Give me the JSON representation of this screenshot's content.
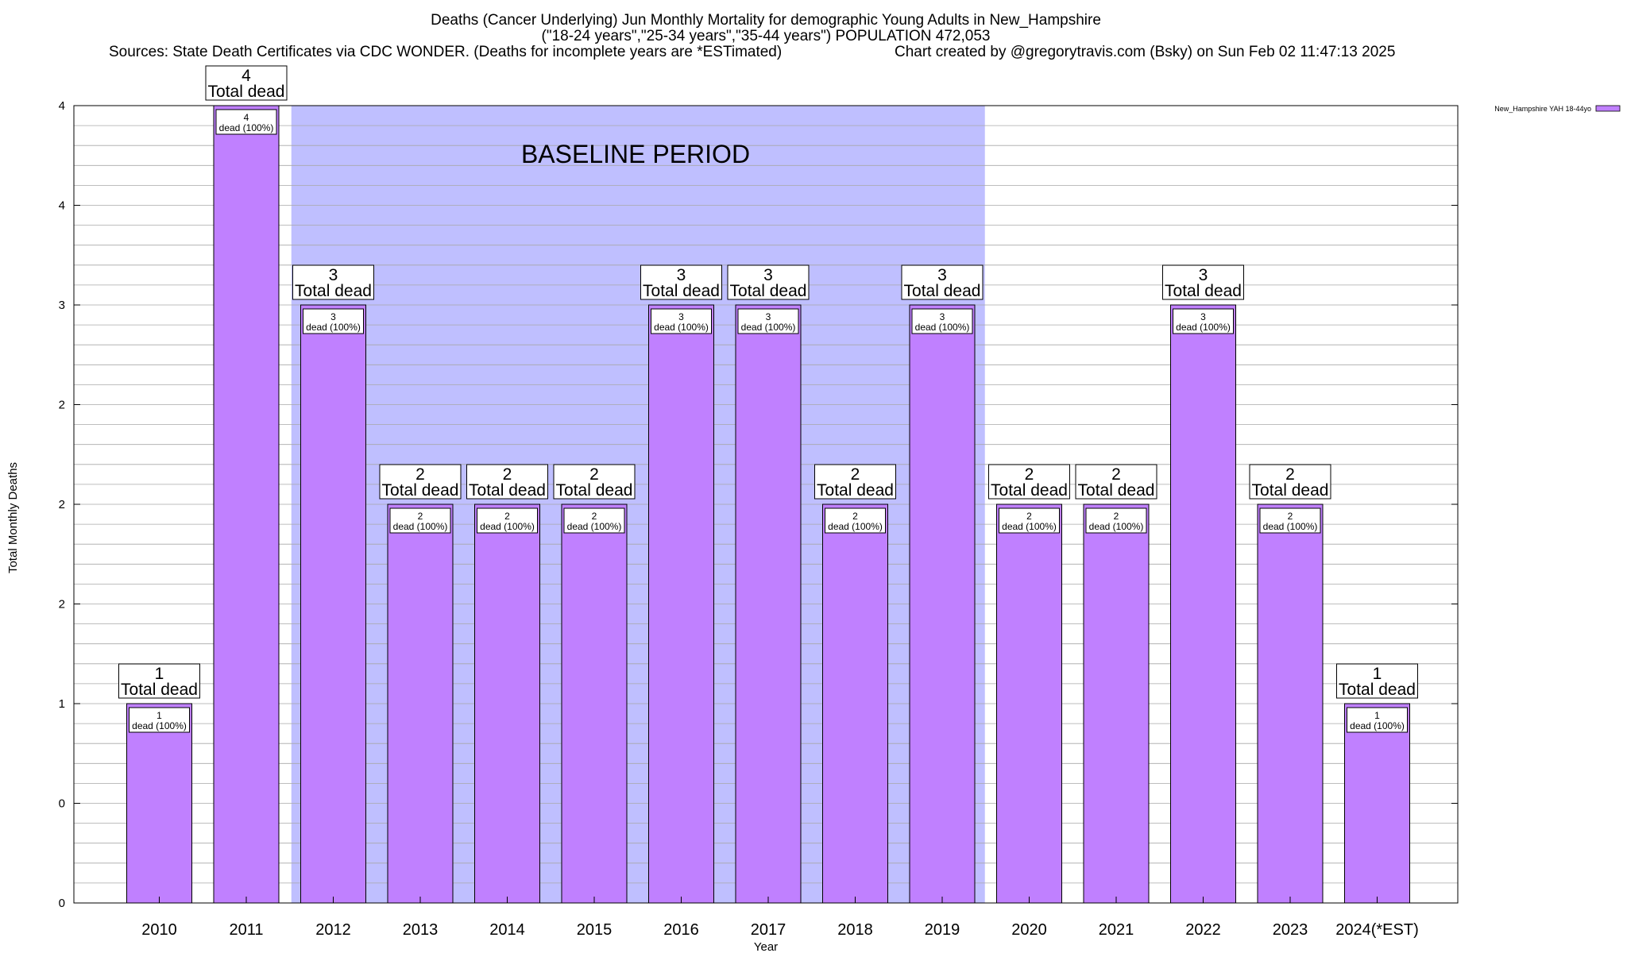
{
  "chart_data": {
    "type": "bar",
    "title_lines": [
      "Deaths (Cancer Underlying) Jun Monthly Mortality for demographic Young Adults in New_Hampshire",
      "(\"18-24 years\",\"25-34 years\",\"35-44 years\") POPULATION 472,053"
    ],
    "sources": "Sources: State Death Certificates via CDC WONDER. (Deaths for incomplete years are *ESTimated)",
    "credit": "Chart created by @gregorytravis.com (Bsky) on Sun Feb 02 11:47:13 2025",
    "xlabel": "Year",
    "ylabel": "Total Monthly Deaths",
    "ylim": [
      0,
      4
    ],
    "y_tick_values": [
      0,
      0.5,
      1,
      1.5,
      2,
      2.5,
      3,
      3.5,
      4
    ],
    "y_tick_labels": [
      "0",
      "0",
      "1",
      "2",
      "2",
      "2",
      "3",
      "4",
      "4"
    ],
    "grid": true,
    "categories": [
      "2010",
      "2011",
      "2012",
      "2013",
      "2014",
      "2015",
      "2016",
      "2017",
      "2018",
      "2019",
      "2020",
      "2021",
      "2022",
      "2023",
      "2024(*EST)"
    ],
    "series": [
      {
        "name": "New_Hampshire YAH 18-44yo",
        "color": "#c080ff",
        "values": [
          1,
          4,
          3,
          2,
          2,
          2,
          3,
          3,
          2,
          3,
          2,
          2,
          3,
          2,
          1
        ]
      }
    ],
    "total_label_text": "Total dead",
    "inner_label_text": "dead (100%)",
    "baseline": {
      "label": "BASELINE PERIOD",
      "start": "2012",
      "end": "2019",
      "color": "#bfbfff"
    },
    "legend_position": "top-right"
  }
}
